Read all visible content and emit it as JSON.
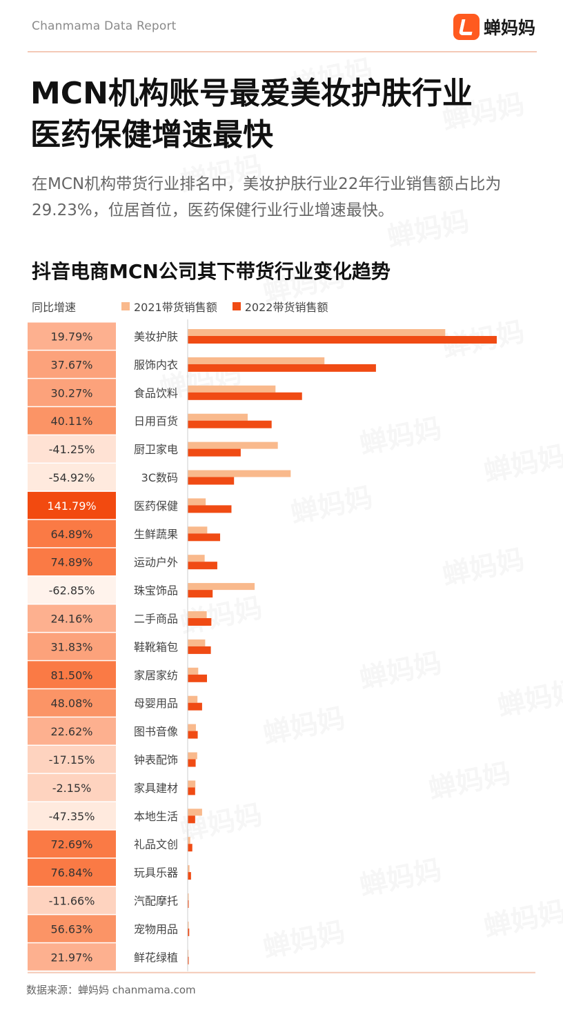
{
  "header": {
    "brand_text": "Chanmama Data Report",
    "logo_text": "蝉妈妈"
  },
  "headline": {
    "line1": "MCN机构账号最爱美妆护肤行业",
    "line2": "医药保健增速最快"
  },
  "subtitle": "在MCN机构带货行业排名中，美妆护肤行业22年行业销售额占比为29.23%，位居首位，医药保健行业行业增速最快。",
  "watermark": "蝉妈妈",
  "footer": "数据来源：蝉妈妈 chanmama.com",
  "colors": {
    "bar_2021": "#f9b98c",
    "bar_2022": "#f04b14",
    "accent": "#ff5a1f"
  },
  "chart_data": {
    "type": "bar",
    "orientation": "horizontal",
    "title": "抖音电商MCN公司其下带货行业变化趋势",
    "yoy_label": "同比增速",
    "categories": [
      "美妆护肤",
      "服饰内衣",
      "食品饮料",
      "日用百货",
      "厨卫家电",
      "3C数码",
      "医药保健",
      "生鲜蔬果",
      "运动户外",
      "珠宝饰品",
      "二手商品",
      "鞋靴箱包",
      "家居家纺",
      "母婴用品",
      "图书音像",
      "钟表配饰",
      "家具建材",
      "本地生活",
      "礼品文创",
      "玩具乐器",
      "汽配摩托",
      "宠物用品",
      "鲜花绿植"
    ],
    "yoy_growth": [
      "19.79%",
      "37.67%",
      "30.27%",
      "40.11%",
      "-41.25%",
      "-54.92%",
      "141.79%",
      "64.89%",
      "74.89%",
      "-62.85%",
      "24.16%",
      "31.83%",
      "81.50%",
      "48.08%",
      "22.62%",
      "-17.15%",
      "-2.15%",
      "-47.35%",
      "72.69%",
      "76.84%",
      "-11.66%",
      "56.63%",
      "21.97%"
    ],
    "yoy_values": [
      19.79,
      37.67,
      30.27,
      40.11,
      -41.25,
      -54.92,
      141.79,
      64.89,
      74.89,
      -62.85,
      24.16,
      31.83,
      81.5,
      48.08,
      22.62,
      -17.15,
      -2.15,
      -47.35,
      72.69,
      76.84,
      -11.66,
      56.63,
      21.97
    ],
    "series": [
      {
        "name": "2021带货销售额",
        "values": [
          100,
          53.1,
          34.1,
          23.3,
          35.0,
          40.0,
          7.0,
          7.6,
          6.6,
          26.0,
          7.4,
          6.8,
          4.1,
          3.8,
          3.2,
          3.7,
          3.0,
          5.6,
          1.0,
          0.7,
          0.4,
          0.4,
          0.3
        ]
      },
      {
        "name": "2022带货销售额",
        "values": [
          120.0,
          73.1,
          44.4,
          32.6,
          20.6,
          18.0,
          17.0,
          12.6,
          11.5,
          9.7,
          9.2,
          9.0,
          7.5,
          5.6,
          3.9,
          3.1,
          2.9,
          2.9,
          1.8,
          1.3,
          0.4,
          0.6,
          0.4
        ]
      }
    ],
    "xlim": [
      0,
      120
    ],
    "grid": false,
    "legend": "top"
  }
}
